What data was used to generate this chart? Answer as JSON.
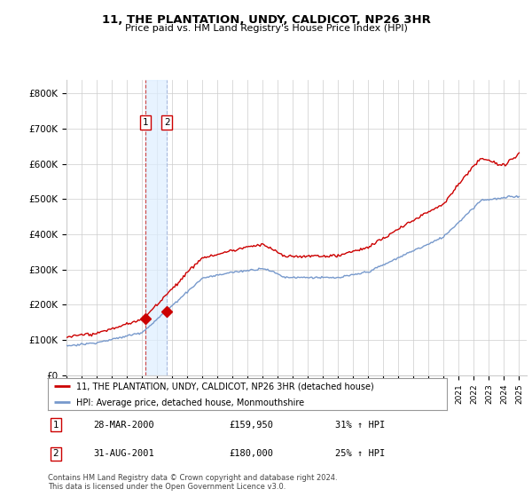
{
  "title": "11, THE PLANTATION, UNDY, CALDICOT, NP26 3HR",
  "subtitle": "Price paid vs. HM Land Registry's House Price Index (HPI)",
  "ylabel_ticks": [
    "£0",
    "£100K",
    "£200K",
    "£300K",
    "£400K",
    "£500K",
    "£600K",
    "£700K",
    "£800K"
  ],
  "ytick_values": [
    0,
    100000,
    200000,
    300000,
    400000,
    500000,
    600000,
    700000,
    800000
  ],
  "ylim": [
    0,
    840000
  ],
  "xlim_start": 1995.0,
  "xlim_end": 2025.5,
  "transaction1": {
    "date_num": 2000.24,
    "price": 159950,
    "label": "1",
    "display_date": "28-MAR-2000",
    "display_price": "£159,950",
    "change": "31% ↑ HPI"
  },
  "transaction2": {
    "date_num": 2001.66,
    "price": 180000,
    "label": "2",
    "display_date": "31-AUG-2001",
    "display_price": "£180,000",
    "change": "25% ↑ HPI"
  },
  "legend_label_red": "11, THE PLANTATION, UNDY, CALDICOT, NP26 3HR (detached house)",
  "legend_label_blue": "HPI: Average price, detached house, Monmouthshire",
  "footer": "Contains HM Land Registry data © Crown copyright and database right 2024.\nThis data is licensed under the Open Government Licence v3.0.",
  "red_color": "#cc0000",
  "blue_color": "#7799cc",
  "shade_color": "#ddeeff",
  "vline1_color": "#cc4444",
  "vline2_color": "#aabbdd",
  "bg_color": "#ffffff",
  "grid_color": "#cccccc"
}
